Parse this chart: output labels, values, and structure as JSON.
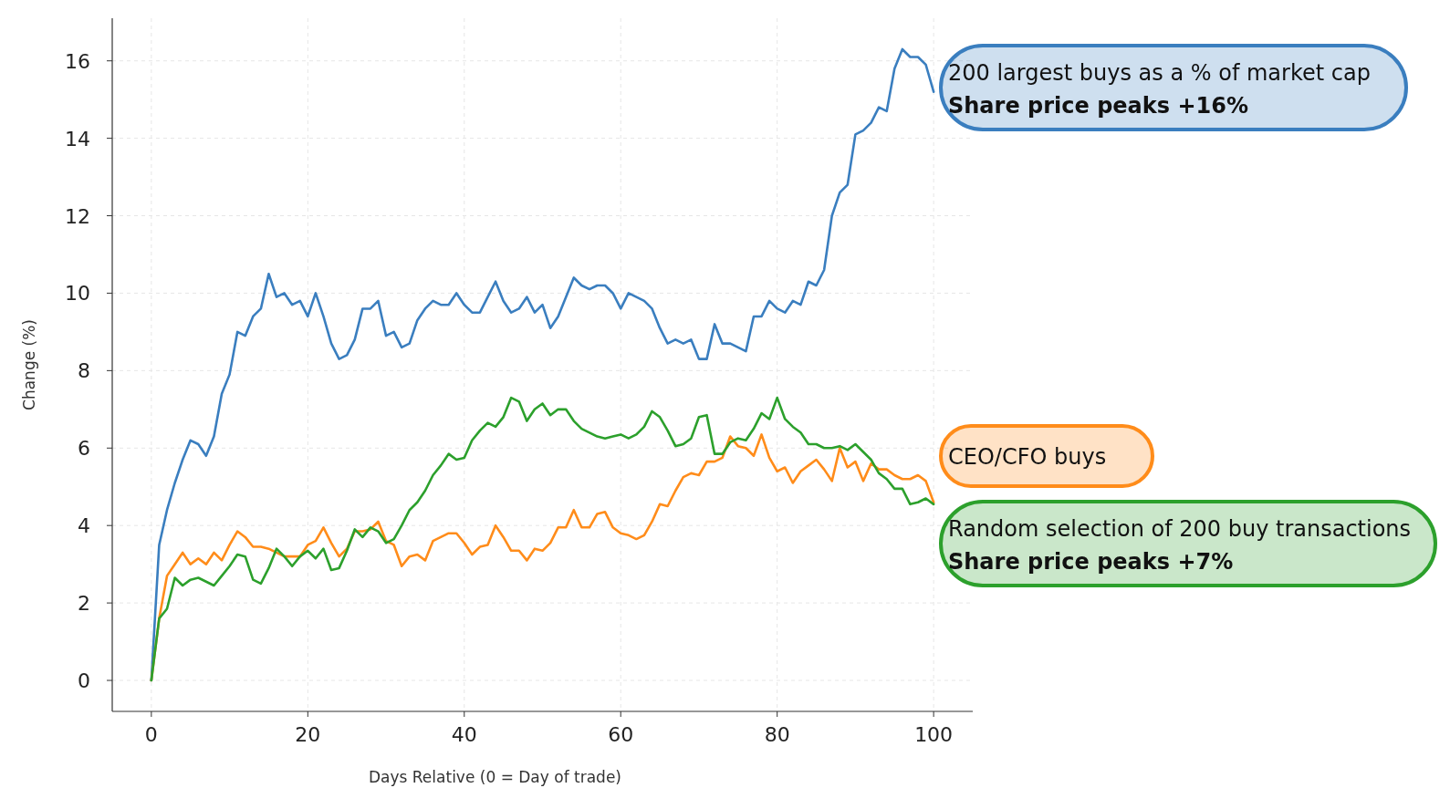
{
  "chart_data": {
    "type": "line",
    "xlabel": "Days Relative (0 = Day of trade)",
    "ylabel": "Change (%)",
    "xlim": [
      -5,
      105
    ],
    "xticks": [
      0,
      20,
      40,
      60,
      80,
      100
    ],
    "ylim": [
      -0.8,
      17.1
    ],
    "yticks": [
      0,
      2,
      4,
      6,
      8,
      10,
      12,
      14,
      16
    ],
    "grid": true,
    "legend": "right",
    "line_style": "solid",
    "marker": "none",
    "annotations": [
      "Share price peaks +16%",
      "Share price peaks +7%"
    ],
    "x": [
      0,
      1,
      2,
      3,
      4,
      5,
      6,
      7,
      8,
      9,
      10,
      11,
      12,
      13,
      14,
      15,
      16,
      17,
      18,
      19,
      20,
      21,
      22,
      23,
      24,
      25,
      26,
      27,
      28,
      29,
      30,
      31,
      32,
      33,
      34,
      35,
      36,
      37,
      38,
      39,
      40,
      41,
      42,
      43,
      44,
      45,
      46,
      47,
      48,
      49,
      50,
      51,
      52,
      53,
      54,
      55,
      56,
      57,
      58,
      59,
      60,
      61,
      62,
      63,
      64,
      65,
      66,
      67,
      68,
      69,
      70,
      71,
      72,
      73,
      74,
      75,
      76,
      77,
      78,
      79,
      80,
      81,
      82,
      83,
      84,
      85,
      86,
      87,
      88,
      89,
      90,
      91,
      92,
      93,
      94,
      95,
      96,
      97,
      98,
      99,
      100
    ],
    "series": [
      {
        "name": "200 largest buys as a % of market cap",
        "color": "#3a7ebf",
        "values": [
          0,
          3.5,
          4.4,
          5.1,
          5.7,
          6.2,
          6.1,
          5.8,
          6.3,
          7.4,
          7.9,
          9.0,
          8.9,
          9.4,
          9.6,
          10.5,
          9.9,
          10.0,
          9.7,
          9.8,
          9.4,
          10.0,
          9.4,
          8.7,
          8.3,
          8.4,
          8.8,
          9.6,
          9.6,
          9.8,
          8.9,
          9.0,
          8.6,
          8.7,
          9.3,
          9.6,
          9.8,
          9.7,
          9.7,
          10.0,
          9.7,
          9.5,
          9.5,
          9.9,
          10.3,
          9.8,
          9.5,
          9.6,
          9.9,
          9.5,
          9.7,
          9.1,
          9.4,
          9.9,
          10.4,
          10.2,
          10.1,
          10.2,
          10.2,
          10.0,
          9.6,
          10.0,
          9.9,
          9.8,
          9.6,
          9.1,
          8.7,
          8.8,
          8.7,
          8.8,
          8.3,
          8.3,
          9.2,
          8.7,
          8.7,
          8.6,
          8.5,
          9.4,
          9.4,
          9.8,
          9.6,
          9.5,
          9.8,
          9.7,
          10.3,
          10.2,
          10.6,
          12.0,
          12.6,
          12.8,
          14.1,
          14.2,
          14.4,
          14.8,
          14.7,
          15.8,
          16.3,
          16.1,
          16.1,
          15.9,
          15.2
        ]
      },
      {
        "name": "CEO/CFO buys",
        "color": "#ff8c1a",
        "values": [
          0,
          1.6,
          2.7,
          3.0,
          3.3,
          3.0,
          3.15,
          3.0,
          3.3,
          3.1,
          3.5,
          3.85,
          3.7,
          3.45,
          3.45,
          3.4,
          3.3,
          3.2,
          3.2,
          3.2,
          3.5,
          3.6,
          3.95,
          3.55,
          3.2,
          3.4,
          3.85,
          3.85,
          3.9,
          4.1,
          3.6,
          3.5,
          2.95,
          3.2,
          3.25,
          3.1,
          3.6,
          3.7,
          3.8,
          3.8,
          3.55,
          3.25,
          3.45,
          3.5,
          4.0,
          3.7,
          3.35,
          3.35,
          3.1,
          3.4,
          3.35,
          3.55,
          3.95,
          3.95,
          4.4,
          3.95,
          3.95,
          4.3,
          4.35,
          3.95,
          3.8,
          3.75,
          3.65,
          3.75,
          4.1,
          4.55,
          4.5,
          4.9,
          5.25,
          5.35,
          5.3,
          5.65,
          5.65,
          5.75,
          6.3,
          6.05,
          6.0,
          5.8,
          6.35,
          5.75,
          5.4,
          5.5,
          5.1,
          5.4,
          5.55,
          5.7,
          5.45,
          5.15,
          6.0,
          5.5,
          5.65,
          5.15,
          5.6,
          5.45,
          5.45,
          5.3,
          5.2,
          5.2,
          5.3,
          5.15,
          4.6
        ]
      },
      {
        "name": "Random selection of 200 buy transactions",
        "color": "#2ca02c",
        "values": [
          0,
          1.6,
          1.85,
          2.65,
          2.45,
          2.6,
          2.65,
          2.55,
          2.45,
          2.7,
          2.95,
          3.25,
          3.2,
          2.6,
          2.5,
          2.9,
          3.4,
          3.2,
          2.95,
          3.2,
          3.35,
          3.15,
          3.4,
          2.85,
          2.9,
          3.35,
          3.9,
          3.7,
          3.95,
          3.85,
          3.55,
          3.65,
          4.0,
          4.4,
          4.6,
          4.9,
          5.3,
          5.55,
          5.85,
          5.7,
          5.75,
          6.2,
          6.45,
          6.65,
          6.55,
          6.8,
          7.3,
          7.2,
          6.7,
          7.0,
          7.15,
          6.85,
          7.0,
          7.0,
          6.7,
          6.5,
          6.4,
          6.3,
          6.25,
          6.3,
          6.35,
          6.25,
          6.35,
          6.55,
          6.95,
          6.8,
          6.45,
          6.05,
          6.1,
          6.25,
          6.8,
          6.85,
          5.85,
          5.85,
          6.15,
          6.25,
          6.2,
          6.5,
          6.9,
          6.75,
          7.3,
          6.75,
          6.55,
          6.4,
          6.1,
          6.1,
          6.0,
          6.0,
          6.05,
          5.95,
          6.1,
          5.9,
          5.7,
          5.35,
          5.2,
          4.95,
          4.95,
          4.55,
          4.6,
          4.7,
          4.55
        ]
      }
    ]
  }
}
